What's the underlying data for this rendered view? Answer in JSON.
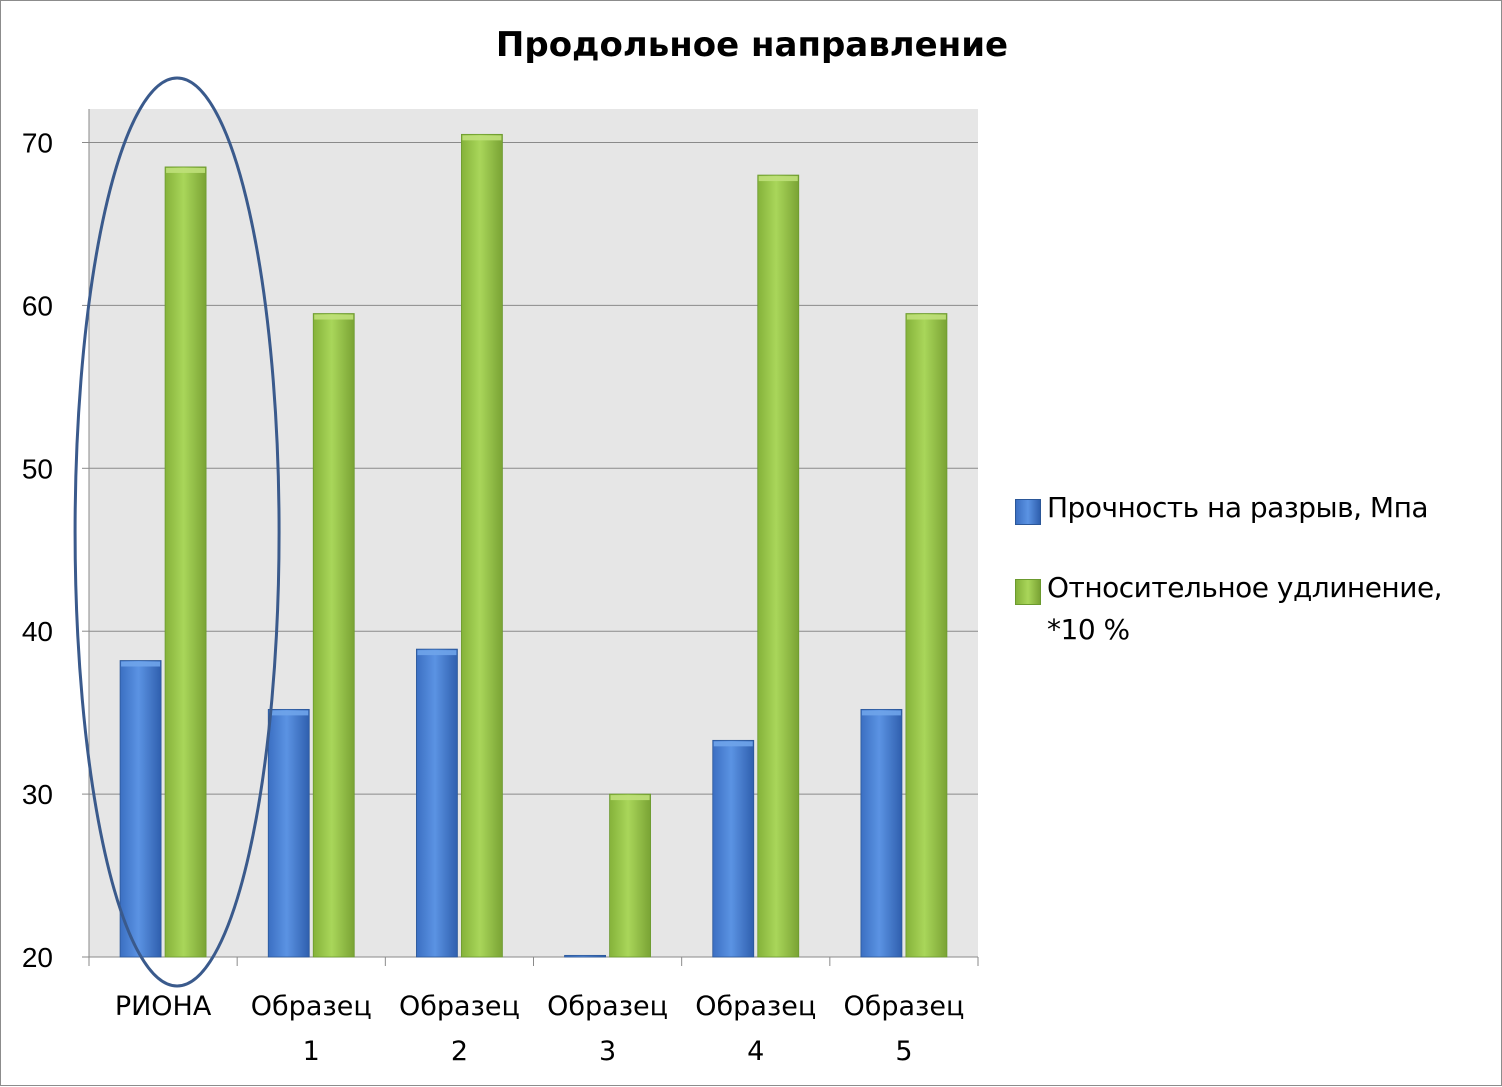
{
  "chart_data": {
    "type": "bar",
    "title": "Продольное направление",
    "xlabel": "",
    "ylabel": "",
    "categories": [
      "РИОНА",
      "Образец 1",
      "Образец 2",
      "Образец 3",
      "Образец 4",
      "Образец 5"
    ],
    "series": [
      {
        "name": "Прочность на разрыв, Мпа",
        "values": [
          38.2,
          35.2,
          38.9,
          20.1,
          33.3,
          35.2
        ],
        "color": "#4a7fd1"
      },
      {
        "name": "Относительное удлинение, *10 %",
        "values": [
          68.5,
          59.5,
          70.5,
          30.0,
          68.0,
          59.5
        ],
        "color": "#92c040"
      }
    ],
    "ylim": [
      20,
      72
    ],
    "yticks": [
      20,
      30,
      40,
      50,
      60,
      70
    ],
    "grid": true,
    "legend_position": "right",
    "plot_background": "#e6e6e6",
    "annotation": {
      "type": "ellipse",
      "target_category": "РИОНА",
      "color": "#3a5a8c"
    }
  }
}
